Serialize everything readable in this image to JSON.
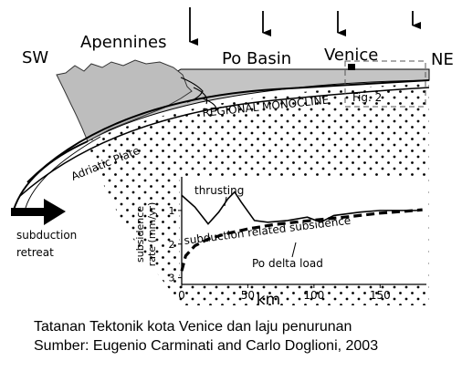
{
  "labels": {
    "sw": "SW",
    "ne": "NE",
    "apennines": "Apennines",
    "po_basin": "Po Basin",
    "venice": "Venice",
    "regional_monocline": "REGIONAL MONOCLINE",
    "adriatic_plate": "Adriatic Plate",
    "fig2": "Fig. 2",
    "subduction_line1": "subduction",
    "subduction_line2": "retreat"
  },
  "chart_data": {
    "type": "line",
    "xlabel": "km",
    "ylabel": "subsidence rate (mm/yr)",
    "ylabel_line1": "subsidence",
    "ylabel_line2": "rate (mm/yr)",
    "xlim": [
      0,
      185
    ],
    "ylim": [
      3.2,
      0
    ],
    "y_inverted": true,
    "x_ticks": [
      "0",
      "50",
      "100",
      "150"
    ],
    "y_ticks": [
      "1",
      "2",
      "3"
    ],
    "series": [
      {
        "name": "thrusting",
        "style": "solid-thin",
        "x": [
          0,
          10,
          20,
          28,
          35,
          40,
          45,
          55,
          65,
          80,
          95,
          105,
          115,
          125,
          135,
          150,
          165,
          180
        ],
        "y": [
          0.55,
          0.9,
          1.4,
          1.05,
          0.65,
          0.45,
          0.75,
          1.3,
          1.35,
          1.3,
          1.2,
          1.35,
          1.15,
          1.1,
          1.05,
          1.0,
          1.0,
          1.0
        ]
      },
      {
        "name": "subduction related subsidence",
        "style": "dashed-thick",
        "x": [
          0,
          3,
          10,
          20,
          35,
          50,
          70,
          90,
          110,
          130,
          150,
          170,
          182
        ],
        "y": [
          2.8,
          2.35,
          2.05,
          1.85,
          1.68,
          1.55,
          1.42,
          1.33,
          1.25,
          1.17,
          1.08,
          1.02,
          0.98
        ]
      }
    ],
    "annotations": [
      "thrusting",
      "subduction related subsidence",
      "Po delta load"
    ]
  },
  "caption": {
    "line1": "Tatanan Tektonik kota Venice dan laju penurunan",
    "line2": "Sumber: Eugenio Carminati and Carlo Doglioni, 2003"
  }
}
